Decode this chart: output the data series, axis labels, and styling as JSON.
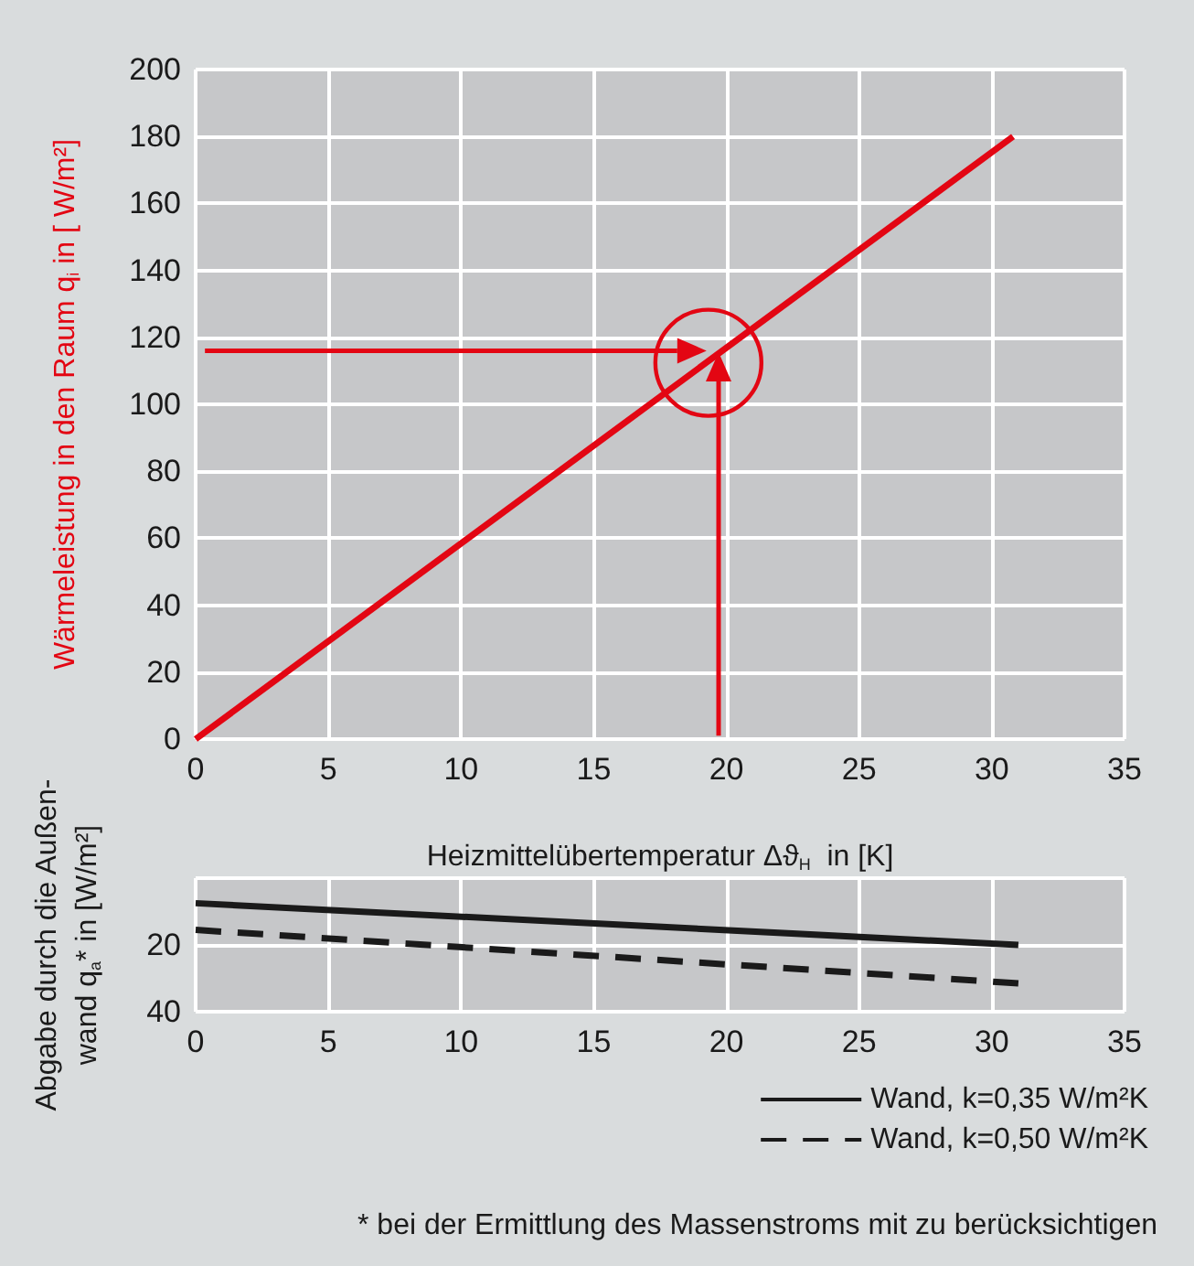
{
  "chart_data": [
    {
      "type": "line",
      "ylabel": "Wärmeleistung in den Raum q$_{i}$ in [ W/m²]",
      "xlabel": "Heizmittelübertemperatur Δϑ$_{H}$  in [K]",
      "x": [
        0,
        30.8
      ],
      "series": [
        {
          "color": "#e30613",
          "values": [
            0,
            180
          ]
        }
      ],
      "xlim": [
        0,
        35
      ],
      "xticks": [
        0,
        5,
        10,
        15,
        20,
        25,
        30,
        35
      ],
      "ylim": [
        0,
        200
      ],
      "yticks": [
        0,
        20,
        40,
        60,
        80,
        100,
        120,
        140,
        160,
        180,
        200
      ],
      "grid": true,
      "legend": false,
      "marker": "none"
    },
    {
      "type": "line",
      "ylabel": "Abgabe durch die Außen-\nwand q$_{a}$* in [W/m²]",
      "x": [
        0,
        31
      ],
      "series": [
        {
          "name": "Wand, k=0,35 W/m²K",
          "color": "#1a1a1a",
          "values": [
            7.5,
            20
          ],
          "line_style": "solid"
        },
        {
          "name": "Wand, k=0,50 W/m²K",
          "color": "#1a1a1a",
          "values": [
            15.5,
            31.5
          ],
          "line_style": "dashed"
        }
      ],
      "xlim": [
        0,
        35
      ],
      "xticks": [
        0,
        5,
        10,
        15,
        20,
        25,
        30,
        35
      ],
      "ylim": [
        40,
        0
      ],
      "yticks": [
        {
          "value": 0,
          "label": null
        },
        20,
        40
      ],
      "grid": true,
      "legend": "bottom right",
      "marker": "none",
      "annotations": [
        "* bei der Ermittlung des Massenstroms mit zu berücksichtigen"
      ]
    }
  ]
}
